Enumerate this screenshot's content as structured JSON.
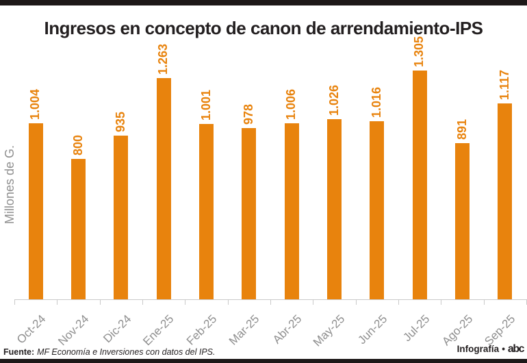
{
  "page": {
    "title": "Ingresos en concepto de canon de arrendamiento-IPS"
  },
  "chart_data": {
    "type": "bar",
    "title": "Ingresos en concepto de canon de arrendamiento-IPS",
    "xlabel": "",
    "ylabel": "Millones de G.",
    "categories": [
      "Oct-24",
      "Nov-24",
      "Dic-24",
      "Ene-25",
      "Feb-25",
      "Mar-25",
      "Abr-25",
      "May-25",
      "Jun-25",
      "Jul-25",
      "Ago-25",
      "Sep-25"
    ],
    "values": [
      1004,
      800,
      935,
      1263,
      1001,
      978,
      1006,
      1026,
      1016,
      1305,
      891,
      1117
    ],
    "value_labels": [
      "1.004",
      "800",
      "935",
      "1.263",
      "1.001",
      "978",
      "1.006",
      "1.026",
      "1.016",
      "1.305",
      "891",
      "1.117"
    ],
    "ylim": [
      0,
      1400
    ],
    "grid": false,
    "legend": false,
    "bar_color": "#e8830d",
    "value_label_color": "#e8830d",
    "axis_label_color": "#8f8f8f",
    "axis_line_color": "#c9c9c9"
  },
  "footer": {
    "source_label": "Fuente:",
    "source_text": "MF Economía e Inversiones con datos del IPS.",
    "credit_label": "Infografía",
    "credit_separator": "•",
    "logo_text": "abc"
  },
  "colors": {
    "accent_orange": "#e8830d",
    "band_black": "#1d1818",
    "text_dark": "#231f20",
    "label_gray": "#8f8f8f",
    "axis_gray": "#c9c9c9"
  }
}
